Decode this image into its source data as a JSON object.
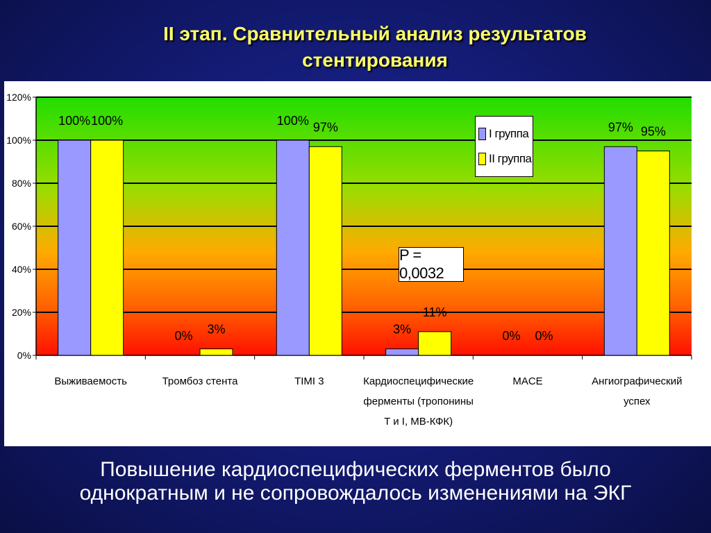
{
  "title_line1": "II этап. Сравнительный анализ результатов",
  "title_line2": "стентирования",
  "caption_line1": "Повышение кардиоспецифических ферментов было",
  "caption_line2": "однократным и не сопровождалось изменениями на ЭКГ",
  "p_value": "P = 0,0032",
  "colors": {
    "group1": "#9999ff",
    "group2": "#ffff00"
  },
  "chart_data": {
    "type": "bar",
    "ylim": [
      0,
      120
    ],
    "y_ticks": [
      0,
      20,
      40,
      60,
      80,
      100,
      120
    ],
    "y_tick_labels": [
      "0%",
      "20%",
      "40%",
      "60%",
      "80%",
      "100%",
      "120%"
    ],
    "categories": [
      [
        "Выживаемость"
      ],
      [
        "Тромбоз стента"
      ],
      [
        "TIMI 3"
      ],
      [
        "Кардиоспецифические",
        "ферменты (тропонины",
        "T и I, MB-КФК)"
      ],
      [
        "MACE"
      ],
      [
        "Ангиографический",
        "успех"
      ]
    ],
    "legend_position": "top-right",
    "series": [
      {
        "name": "I группа",
        "values": [
          100,
          0,
          100,
          3,
          0,
          97
        ],
        "labels": [
          "100%",
          "0%",
          "100%",
          "3%",
          "0%",
          "97%"
        ]
      },
      {
        "name": "II группа",
        "values": [
          100,
          3,
          97,
          11,
          0,
          95
        ],
        "labels": [
          "100%",
          "3%",
          "97%",
          "11%",
          "0%",
          "95%"
        ]
      }
    ]
  }
}
